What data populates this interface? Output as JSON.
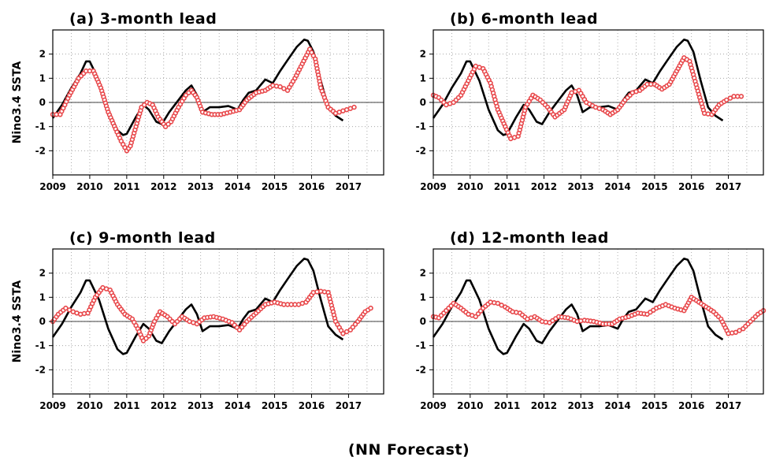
{
  "footer": "(NN Forecast)",
  "ylabel": "Nino3.4 SSTA",
  "chart_data": [
    {
      "type": "line",
      "title": "(a) 3-month lead",
      "ylabel": "Nino3.4 SSTA",
      "xlim": [
        2009,
        2017.95
      ],
      "ylim": [
        -3,
        3
      ],
      "xticks": [
        "2009",
        "2010",
        "2011",
        "2012",
        "2013",
        "2014",
        "2015",
        "2016",
        "2017"
      ],
      "yticks": [
        "-2",
        "-1",
        "0",
        "1",
        "2"
      ],
      "grid": true,
      "series": [
        {
          "role": "observed",
          "color": "#000000",
          "x": [
            2009.0,
            2009.25,
            2009.5,
            2009.75,
            2009.9,
            2010.0,
            2010.25,
            2010.5,
            2010.75,
            2010.9,
            2011.0,
            2011.25,
            2011.45,
            2011.6,
            2011.8,
            2011.95,
            2012.15,
            2012.4,
            2012.6,
            2012.75,
            2012.9,
            2013.05,
            2013.25,
            2013.5,
            2013.75,
            2014.0,
            2014.15,
            2014.3,
            2014.5,
            2014.75,
            2014.95,
            2015.15,
            2015.35,
            2015.6,
            2015.8,
            2015.9,
            2016.05,
            2016.25,
            2016.45,
            2016.65,
            2016.85
          ],
          "y": [
            -0.65,
            -0.1,
            0.6,
            1.2,
            1.7,
            1.7,
            0.9,
            -0.3,
            -1.15,
            -1.35,
            -1.3,
            -0.6,
            -0.1,
            -0.3,
            -0.8,
            -0.9,
            -0.4,
            0.1,
            0.5,
            0.7,
            0.3,
            -0.4,
            -0.2,
            -0.2,
            -0.15,
            -0.3,
            0.1,
            0.4,
            0.5,
            0.95,
            0.8,
            1.3,
            1.75,
            2.3,
            2.6,
            2.55,
            2.1,
            0.9,
            -0.2,
            -0.55,
            -0.75
          ]
        },
        {
          "role": "forecast",
          "color": "#e8474a",
          "x": [
            2009.0,
            2009.2,
            2009.45,
            2009.7,
            2009.9,
            2010.1,
            2010.3,
            2010.5,
            2010.7,
            2010.85,
            2011.0,
            2011.1,
            2011.25,
            2011.4,
            2011.55,
            2011.7,
            2011.85,
            2012.05,
            2012.2,
            2012.4,
            2012.6,
            2012.75,
            2012.9,
            2013.05,
            2013.3,
            2013.55,
            2013.8,
            2014.05,
            2014.25,
            2014.5,
            2014.75,
            2014.95,
            2015.15,
            2015.35,
            2015.55,
            2015.75,
            2015.95,
            2016.1,
            2016.25,
            2016.45,
            2016.65,
            2016.85,
            2017.05,
            2017.15
          ],
          "y": [
            -0.5,
            -0.5,
            0.3,
            1.0,
            1.3,
            1.3,
            0.6,
            -0.4,
            -1.1,
            -1.6,
            -2.0,
            -1.8,
            -1.0,
            -0.2,
            0.0,
            -0.1,
            -0.6,
            -1.0,
            -0.8,
            -0.2,
            0.3,
            0.5,
            0.2,
            -0.4,
            -0.5,
            -0.5,
            -0.4,
            -0.3,
            0.1,
            0.4,
            0.5,
            0.7,
            0.65,
            0.5,
            1.0,
            1.6,
            2.2,
            1.8,
            0.6,
            -0.2,
            -0.45,
            -0.35,
            -0.25,
            -0.2
          ]
        }
      ]
    },
    {
      "type": "line",
      "title": "(b) 6-month lead",
      "ylabel": "",
      "xlim": [
        2009,
        2017.95
      ],
      "ylim": [
        -3,
        3
      ],
      "xticks": [
        "2009",
        "2010",
        "2011",
        "2012",
        "2013",
        "2014",
        "2015",
        "2016",
        "2017"
      ],
      "yticks": [
        "-2",
        "-1",
        "0",
        "1",
        "2"
      ],
      "grid": true,
      "series": [
        {
          "role": "observed",
          "color": "#000000",
          "x": [
            2009.0,
            2009.25,
            2009.5,
            2009.75,
            2009.9,
            2010.0,
            2010.25,
            2010.5,
            2010.75,
            2010.9,
            2011.0,
            2011.25,
            2011.45,
            2011.6,
            2011.8,
            2011.95,
            2012.15,
            2012.4,
            2012.6,
            2012.75,
            2012.9,
            2013.05,
            2013.25,
            2013.5,
            2013.75,
            2014.0,
            2014.15,
            2014.3,
            2014.5,
            2014.75,
            2014.95,
            2015.15,
            2015.35,
            2015.6,
            2015.8,
            2015.9,
            2016.05,
            2016.25,
            2016.45,
            2016.65,
            2016.85
          ],
          "y": [
            -0.65,
            -0.1,
            0.6,
            1.2,
            1.7,
            1.7,
            0.9,
            -0.3,
            -1.15,
            -1.35,
            -1.3,
            -0.6,
            -0.1,
            -0.3,
            -0.8,
            -0.9,
            -0.4,
            0.1,
            0.5,
            0.7,
            0.3,
            -0.4,
            -0.2,
            -0.2,
            -0.15,
            -0.3,
            0.1,
            0.4,
            0.5,
            0.95,
            0.8,
            1.3,
            1.75,
            2.3,
            2.6,
            2.55,
            2.1,
            0.9,
            -0.2,
            -0.55,
            -0.75
          ]
        },
        {
          "role": "forecast",
          "color": "#e8474a",
          "x": [
            2009.0,
            2009.15,
            2009.35,
            2009.55,
            2009.75,
            2009.95,
            2010.15,
            2010.35,
            2010.55,
            2010.75,
            2010.95,
            2011.1,
            2011.3,
            2011.5,
            2011.7,
            2011.9,
            2012.1,
            2012.3,
            2012.55,
            2012.75,
            2012.95,
            2013.15,
            2013.4,
            2013.6,
            2013.8,
            2014.0,
            2014.2,
            2014.4,
            2014.6,
            2014.8,
            2015.0,
            2015.2,
            2015.4,
            2015.6,
            2015.8,
            2015.95,
            2016.15,
            2016.35,
            2016.55,
            2016.75,
            2016.95,
            2017.15,
            2017.35
          ],
          "y": [
            0.3,
            0.2,
            -0.1,
            0.0,
            0.3,
            0.9,
            1.5,
            1.4,
            0.8,
            -0.3,
            -1.0,
            -1.5,
            -1.4,
            -0.2,
            0.3,
            0.1,
            -0.2,
            -0.6,
            -0.3,
            0.4,
            0.5,
            0.0,
            -0.2,
            -0.3,
            -0.5,
            -0.3,
            0.1,
            0.4,
            0.5,
            0.75,
            0.75,
            0.55,
            0.75,
            1.3,
            1.85,
            1.7,
            0.6,
            -0.45,
            -0.5,
            -0.1,
            0.1,
            0.25,
            0.25
          ]
        }
      ]
    },
    {
      "type": "line",
      "title": "(c) 9-month lead",
      "ylabel": "Nino3.4 SSTA",
      "xlim": [
        2009,
        2017.95
      ],
      "ylim": [
        -3,
        3
      ],
      "xticks": [
        "2009",
        "2010",
        "2011",
        "2012",
        "2013",
        "2014",
        "2015",
        "2016",
        "2017"
      ],
      "yticks": [
        "-2",
        "-1",
        "0",
        "1",
        "2"
      ],
      "grid": true,
      "series": [
        {
          "role": "observed",
          "color": "#000000",
          "x": [
            2009.0,
            2009.25,
            2009.5,
            2009.75,
            2009.9,
            2010.0,
            2010.25,
            2010.5,
            2010.75,
            2010.9,
            2011.0,
            2011.25,
            2011.45,
            2011.6,
            2011.8,
            2011.95,
            2012.15,
            2012.4,
            2012.6,
            2012.75,
            2012.9,
            2013.05,
            2013.25,
            2013.5,
            2013.75,
            2014.0,
            2014.15,
            2014.3,
            2014.5,
            2014.75,
            2014.95,
            2015.15,
            2015.35,
            2015.6,
            2015.8,
            2015.9,
            2016.05,
            2016.25,
            2016.45,
            2016.65,
            2016.85
          ],
          "y": [
            -0.65,
            -0.1,
            0.6,
            1.2,
            1.7,
            1.7,
            0.9,
            -0.3,
            -1.15,
            -1.35,
            -1.3,
            -0.6,
            -0.1,
            -0.3,
            -0.8,
            -0.9,
            -0.4,
            0.1,
            0.5,
            0.7,
            0.3,
            -0.4,
            -0.2,
            -0.2,
            -0.15,
            -0.3,
            0.1,
            0.4,
            0.5,
            0.95,
            0.8,
            1.3,
            1.75,
            2.3,
            2.6,
            2.55,
            2.1,
            0.9,
            -0.2,
            -0.55,
            -0.75
          ]
        },
        {
          "role": "forecast",
          "color": "#e8474a",
          "x": [
            2009.0,
            2009.15,
            2009.35,
            2009.55,
            2009.75,
            2009.95,
            2010.15,
            2010.35,
            2010.55,
            2010.75,
            2010.95,
            2011.15,
            2011.3,
            2011.45,
            2011.6,
            2011.75,
            2011.9,
            2012.1,
            2012.3,
            2012.5,
            2012.7,
            2012.9,
            2013.1,
            2013.35,
            2013.6,
            2013.85,
            2014.05,
            2014.25,
            2014.5,
            2014.75,
            2015.0,
            2015.25,
            2015.45,
            2015.65,
            2015.85,
            2016.05,
            2016.25,
            2016.45,
            2016.65,
            2016.85,
            2017.05,
            2017.25,
            2017.45,
            2017.6
          ],
          "y": [
            0.0,
            0.3,
            0.55,
            0.4,
            0.3,
            0.35,
            1.0,
            1.4,
            1.3,
            0.7,
            0.3,
            0.1,
            -0.3,
            -0.8,
            -0.6,
            0.0,
            0.4,
            0.2,
            -0.1,
            0.2,
            0.0,
            -0.1,
            0.15,
            0.2,
            0.1,
            -0.05,
            -0.35,
            0.0,
            0.35,
            0.7,
            0.8,
            0.7,
            0.7,
            0.7,
            0.8,
            1.2,
            1.25,
            1.2,
            0.0,
            -0.5,
            -0.35,
            0.0,
            0.4,
            0.55
          ]
        }
      ]
    },
    {
      "type": "line",
      "title": "(d) 12-month lead",
      "ylabel": "",
      "xlim": [
        2009,
        2017.95
      ],
      "ylim": [
        -3,
        3
      ],
      "xticks": [
        "2009",
        "2010",
        "2011",
        "2012",
        "2013",
        "2014",
        "2015",
        "2016",
        "2017"
      ],
      "yticks": [
        "-2",
        "-1",
        "0",
        "1",
        "2"
      ],
      "grid": true,
      "series": [
        {
          "role": "observed",
          "color": "#000000",
          "x": [
            2009.0,
            2009.25,
            2009.5,
            2009.75,
            2009.9,
            2010.0,
            2010.25,
            2010.5,
            2010.75,
            2010.9,
            2011.0,
            2011.25,
            2011.45,
            2011.6,
            2011.8,
            2011.95,
            2012.15,
            2012.4,
            2012.6,
            2012.75,
            2012.9,
            2013.05,
            2013.25,
            2013.5,
            2013.75,
            2014.0,
            2014.15,
            2014.3,
            2014.5,
            2014.75,
            2014.95,
            2015.15,
            2015.35,
            2015.6,
            2015.8,
            2015.9,
            2016.05,
            2016.25,
            2016.45,
            2016.65,
            2016.85
          ],
          "y": [
            -0.65,
            -0.1,
            0.6,
            1.2,
            1.7,
            1.7,
            0.9,
            -0.3,
            -1.15,
            -1.35,
            -1.3,
            -0.6,
            -0.1,
            -0.3,
            -0.8,
            -0.9,
            -0.4,
            0.1,
            0.5,
            0.7,
            0.3,
            -0.4,
            -0.2,
            -0.2,
            -0.15,
            -0.3,
            0.1,
            0.4,
            0.5,
            0.95,
            0.8,
            1.3,
            1.75,
            2.3,
            2.6,
            2.55,
            2.1,
            0.9,
            -0.2,
            -0.55,
            -0.75
          ]
        },
        {
          "role": "forecast",
          "color": "#e8474a",
          "x": [
            2009.0,
            2009.15,
            2009.35,
            2009.55,
            2009.75,
            2009.95,
            2010.15,
            2010.35,
            2010.55,
            2010.75,
            2010.95,
            2011.15,
            2011.35,
            2011.55,
            2011.75,
            2011.95,
            2012.15,
            2012.4,
            2012.65,
            2012.9,
            2013.1,
            2013.35,
            2013.6,
            2013.85,
            2014.05,
            2014.3,
            2014.55,
            2014.8,
            2015.05,
            2015.3,
            2015.55,
            2015.8,
            2016.0,
            2016.2,
            2016.4,
            2016.6,
            2016.8,
            2017.0,
            2017.2,
            2017.4,
            2017.6,
            2017.8,
            2017.95
          ],
          "y": [
            0.2,
            0.15,
            0.45,
            0.75,
            0.55,
            0.3,
            0.2,
            0.55,
            0.8,
            0.75,
            0.6,
            0.4,
            0.35,
            0.1,
            0.2,
            0.0,
            -0.05,
            0.2,
            0.15,
            0.0,
            0.05,
            0.0,
            -0.1,
            -0.1,
            0.1,
            0.2,
            0.35,
            0.3,
            0.55,
            0.7,
            0.55,
            0.45,
            1.0,
            0.8,
            0.6,
            0.4,
            0.1,
            -0.5,
            -0.45,
            -0.3,
            0.0,
            0.3,
            0.45
          ]
        }
      ]
    }
  ]
}
